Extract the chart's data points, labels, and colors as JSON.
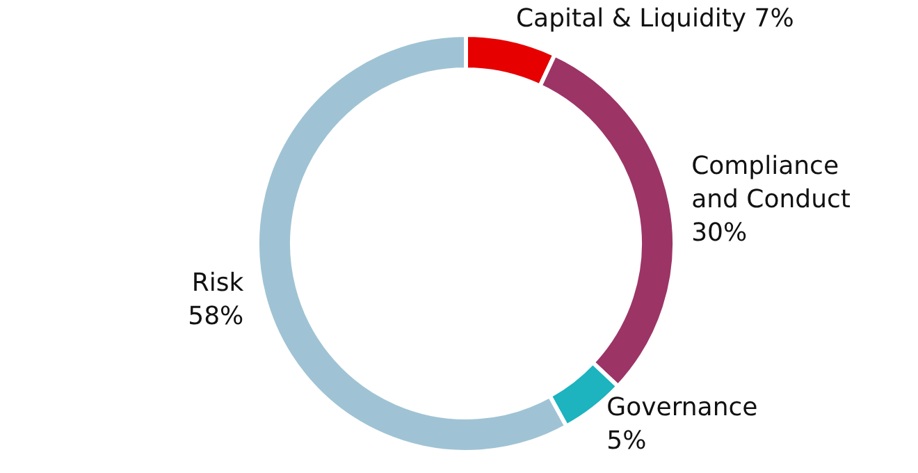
{
  "chart_data": {
    "type": "donut",
    "categories": [
      "Capital & Liquidity",
      "Compliance and Conduct",
      "Governance",
      "Risk"
    ],
    "values": [
      7,
      30,
      5,
      58
    ],
    "colors": [
      "#e60000",
      "#9c3466",
      "#1db3bf",
      "#9fc3d4"
    ],
    "value_labels": [
      "7%",
      "30%",
      "5%",
      "58%"
    ],
    "legend": false
  }
}
